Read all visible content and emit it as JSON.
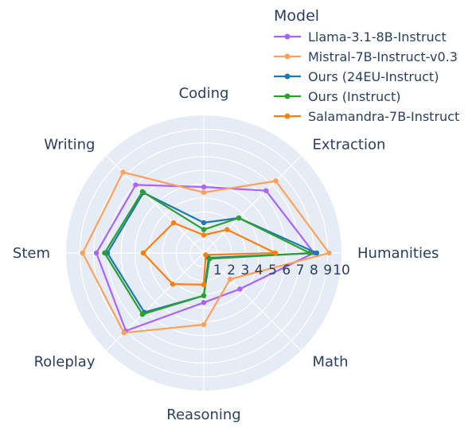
{
  "chart_data": {
    "type": "radar",
    "categories": [
      "Humanities",
      "Extraction",
      "Coding",
      "Writing",
      "Stem",
      "Roleplay",
      "Reasoning",
      "Math"
    ],
    "radial_range": [
      0,
      10
    ],
    "radial_ticks": [
      "1",
      "2",
      "3",
      "4",
      "5",
      "6",
      "7",
      "8",
      "9",
      "10"
    ],
    "grid": true,
    "legend": {
      "title": "Model",
      "placement": "top-right"
    },
    "series": [
      {
        "name": "Llama-3.1-8B-Instruct",
        "color": "#ab63fa",
        "values": [
          8.0,
          6.4,
          4.8,
          7.0,
          7.8,
          8.0,
          3.6,
          3.7
        ]
      },
      {
        "name": "Mistral-7B-Instruct-v0.3",
        "color": "#ffa15a",
        "values": [
          9.1,
          7.4,
          4.4,
          8.3,
          8.8,
          8.2,
          5.2,
          2.7
        ]
      },
      {
        "name": "Ours (24EU-Instruct)",
        "color": "#1f77b4",
        "values": [
          8.2,
          3.6,
          2.2,
          6.2,
          7.0,
          6.1,
          3.1,
          0.5
        ]
      },
      {
        "name": "Ours (Instruct)",
        "color": "#2ca02c",
        "values": [
          7.7,
          3.6,
          1.7,
          6.3,
          7.2,
          6.3,
          3.1,
          0.6
        ]
      },
      {
        "name": "Salamandra-7B-Instruct",
        "color": "#ff7f0e",
        "values": [
          5.2,
          2.4,
          1.3,
          3.1,
          4.4,
          3.2,
          2.3,
          0.2
        ]
      }
    ]
  }
}
